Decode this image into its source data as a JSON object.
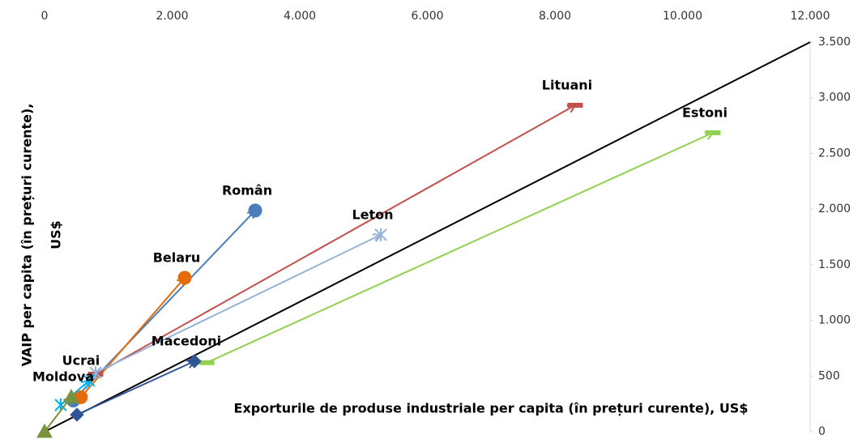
{
  "chart_data": {
    "type": "arrow-scatter",
    "x_label": "Exporturile de produse industriale per capita (în prețuri curente), US$",
    "y_label": [
      "VAIP per capita (în prețuri curente),",
      "US$"
    ],
    "xlim": [
      0,
      12000
    ],
    "ylim": [
      0,
      3500
    ],
    "xticks": [
      0,
      {
        "value": 2000,
        "label": "2.000"
      },
      {
        "value": 4000,
        "label": "4.000"
      },
      {
        "value": 6000,
        "label": "6.000"
      },
      {
        "value": 8000,
        "label": "8.000"
      },
      {
        "value": 10000,
        "label": "10.000"
      },
      {
        "value": 12000,
        "label": "12.000"
      }
    ],
    "yticks": [
      0,
      500,
      {
        "value": 1000,
        "label": "1.000"
      },
      {
        "value": 1500,
        "label": "1.500"
      },
      {
        "value": 2000,
        "label": "2.000"
      },
      {
        "value": 2500,
        "label": "2.500"
      },
      {
        "value": 3000,
        "label": "3.000"
      },
      {
        "value": 3500,
        "label": "3.500"
      }
    ],
    "reference_line": {
      "color": "#000000",
      "x": [
        0,
        12000
      ],
      "y": [
        0,
        3500
      ]
    },
    "series": [
      {
        "name": "Român",
        "color": "#4a7ebb",
        "marker": "circle",
        "x": [
          450,
          3302
        ],
        "y": [
          280,
          1987
        ]
      },
      {
        "name": "Belaru",
        "color": "#e46c0a",
        "marker": "circle",
        "x": [
          570,
          2197
        ],
        "y": [
          310,
          1383
        ]
      },
      {
        "name": "Lituani",
        "color": "#c0504d",
        "marker": "dash",
        "x": [
          800,
          8317
        ],
        "y": [
          517,
          2933
        ]
      },
      {
        "name": "Estoni",
        "color": "#92d050",
        "marker": "dash",
        "x": [
          2540,
          10476
        ],
        "y": [
          620,
          2686
        ]
      },
      {
        "name": "Leton",
        "color": "#95b3d7",
        "marker": "star",
        "x": [
          800,
          5270
        ],
        "y": [
          530,
          1769
        ]
      },
      {
        "name": "Macedoni",
        "color": "#2f5597",
        "marker": "diamond",
        "x": [
          508,
          2349
        ],
        "y": [
          153,
          633
        ]
      },
      {
        "name": "Ucrai",
        "color": "#00b0f0",
        "marker": "star",
        "x": [
          254,
          698
        ],
        "y": [
          240,
          459
        ]
      },
      {
        "name": "Moldova",
        "color": "#77933c",
        "marker": "triangle",
        "x": [
          0,
          419
        ],
        "y": [
          0,
          313
        ]
      }
    ]
  }
}
